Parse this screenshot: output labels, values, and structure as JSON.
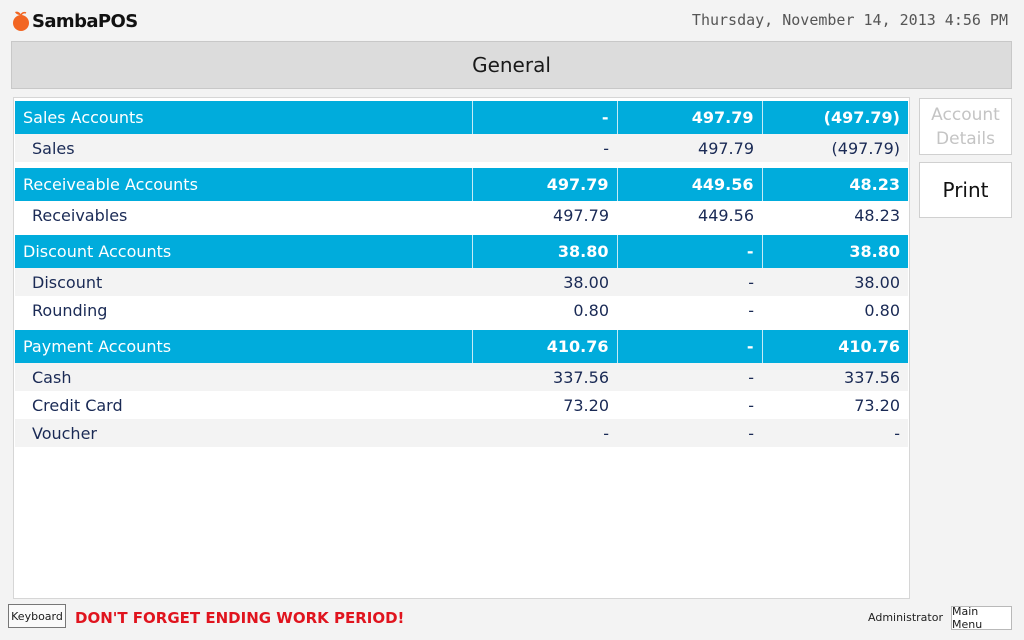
{
  "app": {
    "logo_text": "SambaPOS",
    "datetime": "Thursday, November 14, 2013 4:56 PM"
  },
  "page": {
    "title": "General"
  },
  "groups": [
    {
      "name": "Sales Accounts",
      "col1": "-",
      "col2": "497.79",
      "col3": "(497.79)",
      "rows": [
        {
          "name": "Sales",
          "col1": "-",
          "col2": "497.79",
          "col3": "(497.79)"
        }
      ]
    },
    {
      "name": "Receiveable Accounts",
      "col1": "497.79",
      "col2": "449.56",
      "col3": "48.23",
      "rows": [
        {
          "name": "Receivables",
          "col1": "497.79",
          "col2": "449.56",
          "col3": "48.23"
        }
      ]
    },
    {
      "name": "Discount Accounts",
      "col1": "38.80",
      "col2": "-",
      "col3": "38.80",
      "rows": [
        {
          "name": "Discount",
          "col1": "38.00",
          "col2": "-",
          "col3": "38.00"
        },
        {
          "name": "Rounding",
          "col1": "0.80",
          "col2": "-",
          "col3": "0.80"
        }
      ]
    },
    {
      "name": "Payment Accounts",
      "col1": "410.76",
      "col2": "-",
      "col3": "410.76",
      "rows": [
        {
          "name": "Cash",
          "col1": "337.56",
          "col2": "-",
          "col3": "337.56"
        },
        {
          "name": "Credit Card",
          "col1": "73.20",
          "col2": "-",
          "col3": "73.20"
        },
        {
          "name": "Voucher",
          "col1": "-",
          "col2": "-",
          "col3": "-"
        }
      ]
    }
  ],
  "side_buttons": {
    "account_details_line1": "Account",
    "account_details_line2": "Details",
    "print": "Print"
  },
  "footer": {
    "keyboard": "Keyboard",
    "warning": "DON'T FORGET ENDING WORK PERIOD!",
    "user": "Administrator",
    "main_menu": "Main Menu"
  },
  "colors": {
    "accent": "#00acdc",
    "warning": "#e0141e",
    "logo_orange": "#f26522"
  }
}
